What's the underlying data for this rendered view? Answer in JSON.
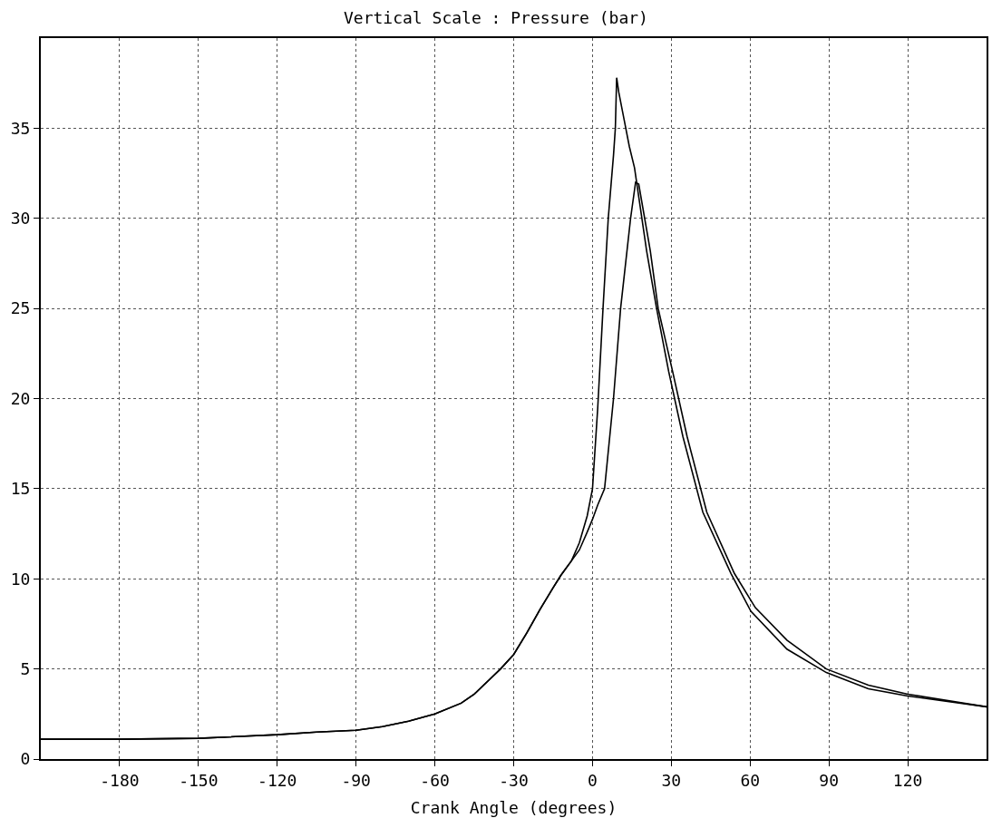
{
  "chart_data": {
    "type": "line",
    "title": "Vertical Scale : Pressure (bar)",
    "xlabel": "Crank Angle (degrees)",
    "xlim": [
      -210,
      150
    ],
    "xticks": [
      -180,
      -150,
      -120,
      -90,
      -60,
      -30,
      0,
      30,
      60,
      90,
      120
    ],
    "ylim": [
      0,
      40
    ],
    "yticks": [
      0,
      5,
      10,
      15,
      20,
      25,
      30,
      35
    ],
    "grid": true,
    "marker": "none",
    "line_style": "solid",
    "series": [
      {
        "color": "#000000",
        "x": [
          -210,
          -180,
          -150,
          -120,
          -105,
          -90,
          -80,
          -70,
          -60,
          -50,
          -45,
          -40,
          -35,
          -30,
          -25,
          -20,
          -15,
          -12,
          -8,
          -5,
          -2,
          0,
          2,
          4,
          6,
          8,
          8.7,
          9.2,
          10,
          12,
          14,
          16,
          20.6,
          24.4,
          29,
          34.4,
          42,
          52.7,
          60.3,
          74,
          89,
          105,
          120,
          150
        ],
        "values": [
          1.1,
          1.1,
          1.15,
          1.35,
          1.5,
          1.6,
          1.8,
          2.1,
          2.5,
          3.1,
          3.6,
          4.3,
          5.0,
          5.8,
          7.0,
          8.3,
          9.5,
          10.2,
          11.0,
          12.0,
          13.5,
          15,
          19.5,
          25,
          30,
          33.5,
          35,
          37.8,
          37,
          35.5,
          34,
          32.8,
          28.2,
          25,
          21.5,
          17.9,
          13.7,
          10.3,
          8.2,
          6.1,
          4.8,
          3.9,
          3.5,
          2.9
        ]
      },
      {
        "color": "#000000",
        "x": [
          -210,
          -180,
          -150,
          -120,
          -105,
          -90,
          -80,
          -70,
          -60,
          -50,
          -45,
          -40,
          -35,
          -30,
          -25,
          -20,
          -15,
          -12,
          -8,
          -5,
          -2,
          0,
          2,
          4.6,
          8,
          10.7,
          14.5,
          16.4,
          17.6,
          22,
          25,
          30.5,
          36,
          43.5,
          54,
          62,
          74,
          89,
          105,
          120,
          150
        ],
        "values": [
          1.1,
          1.1,
          1.15,
          1.35,
          1.5,
          1.6,
          1.8,
          2.1,
          2.5,
          3.1,
          3.6,
          4.3,
          5.0,
          5.8,
          7.0,
          8.3,
          9.5,
          10.2,
          11.0,
          11.6,
          12.6,
          13.3,
          14.1,
          15,
          20,
          25,
          30,
          32,
          31.9,
          28.2,
          25,
          21.5,
          17.9,
          13.7,
          10.3,
          8.4,
          6.6,
          5.0,
          4.1,
          3.6,
          2.9
        ]
      }
    ]
  }
}
